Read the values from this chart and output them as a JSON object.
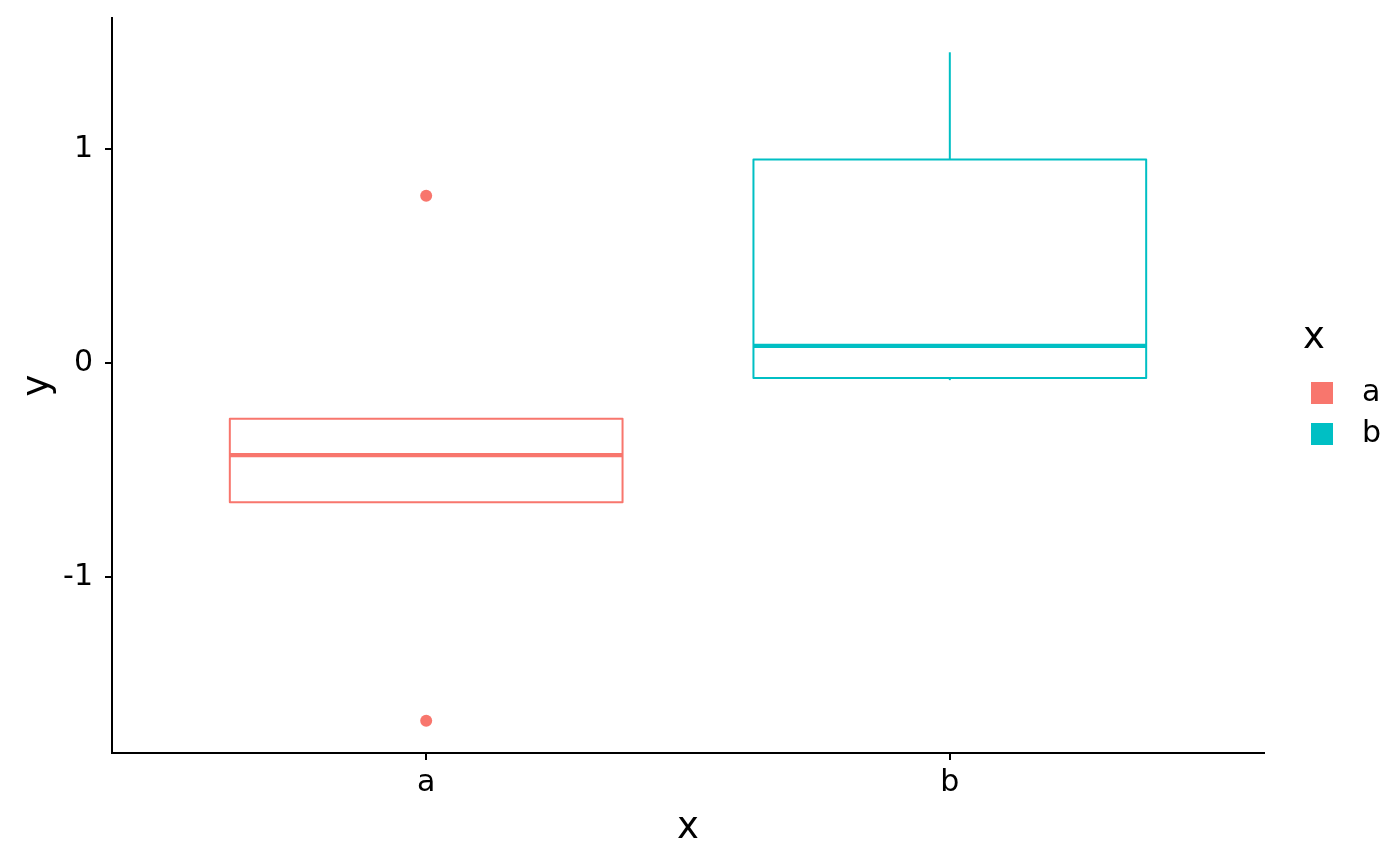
{
  "chart_data": {
    "type": "box",
    "categories": [
      "a",
      "b"
    ],
    "series": [
      {
        "name": "a",
        "color": "#f8766d",
        "boxes": [
          {
            "low": -0.65,
            "q1": -0.65,
            "median": -0.43,
            "q3": -0.26,
            "high": -0.26,
            "outliers": [
              0.78,
              -1.67
            ]
          },
          null
        ]
      },
      {
        "name": "b",
        "color": "#00bfc4",
        "boxes": [
          null,
          {
            "low": -0.08,
            "q1": -0.07,
            "median": 0.08,
            "q3": 0.95,
            "high": 1.45
          }
        ]
      }
    ],
    "xlabel": "x",
    "ylabel": "y",
    "legend_title": "x",
    "legend": "right",
    "ylim": [
      -1.82,
      1.61
    ],
    "yticks": [
      -1,
      0,
      1
    ]
  }
}
